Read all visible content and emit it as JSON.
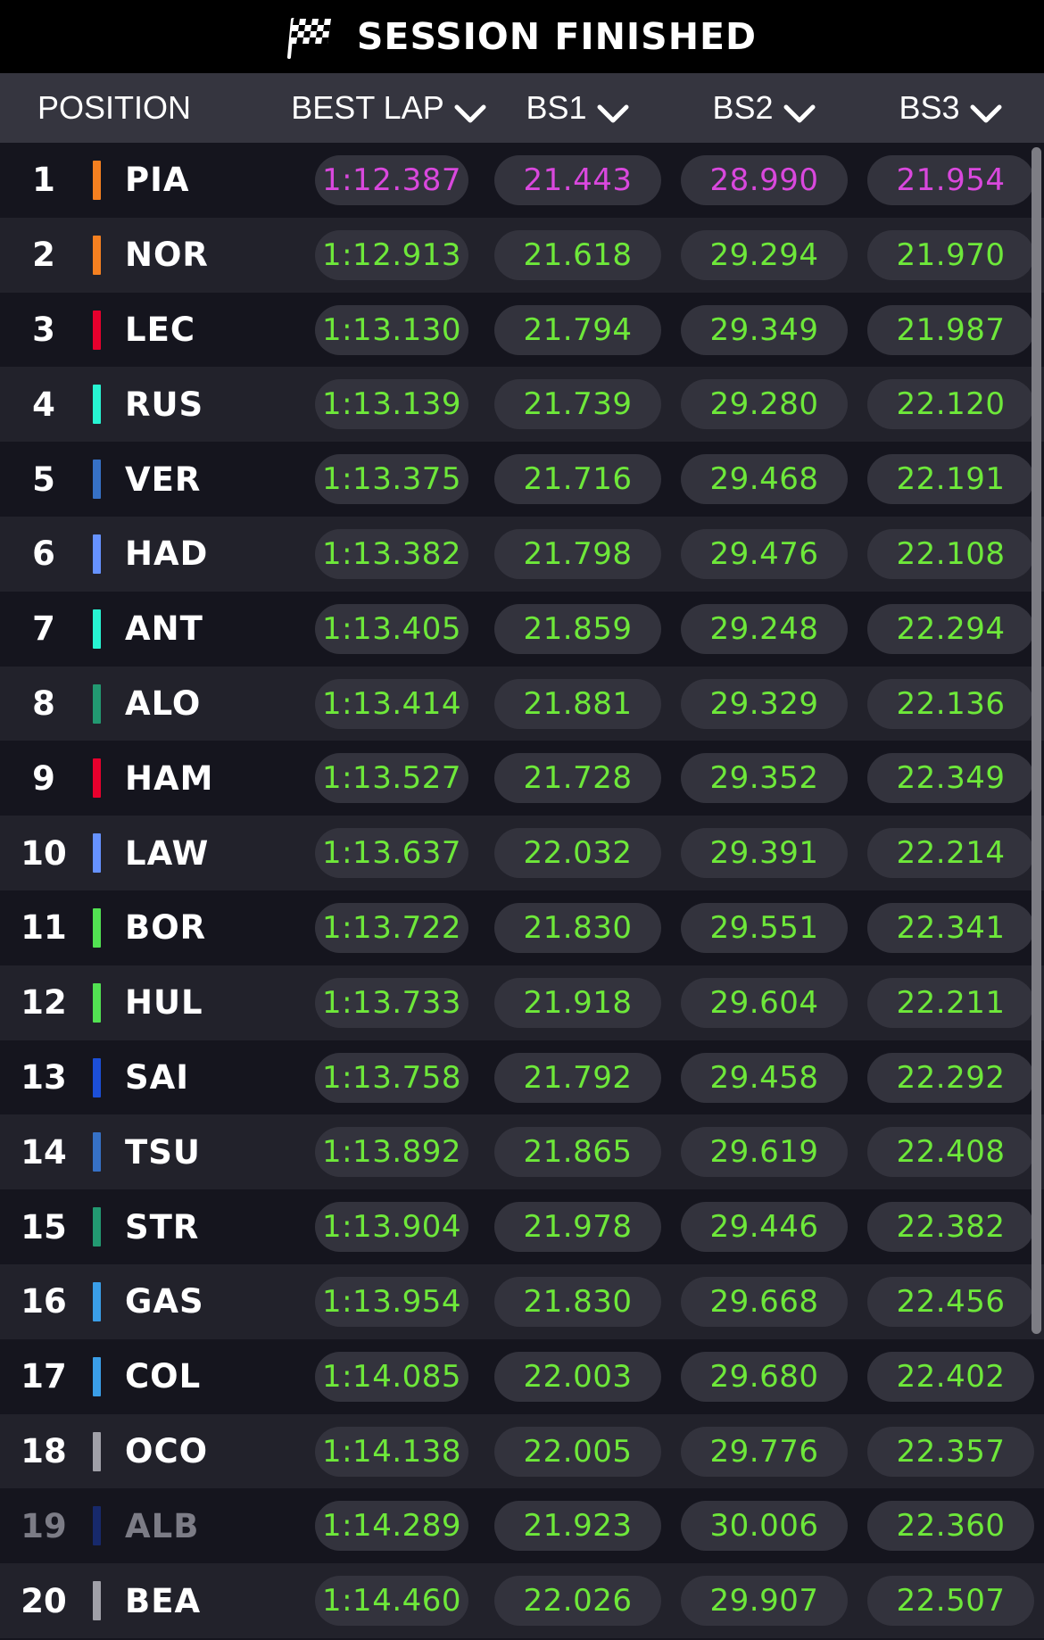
{
  "banner": {
    "title": "SESSION FINISHED",
    "icon": "checkered-flag-icon"
  },
  "columns": {
    "position": "POSITION",
    "best_lap": "BEST LAP",
    "bs1": "BS1",
    "bs2": "BS2",
    "bs3": "BS3",
    "sort_icon": "chevron-down-icon"
  },
  "colors": {
    "fastest": "#d948dd",
    "personal_best": "#6ee83a",
    "background": "#15151e",
    "row_alt": "#22222b",
    "header": "#35353f",
    "pill": "#33333d"
  },
  "rows": [
    {
      "pos": "1",
      "code": "PIA",
      "team_color": "#f58020",
      "best_lap": "1:12.387",
      "bs1": "21.443",
      "bs2": "28.990",
      "bs3": "21.954"
    },
    {
      "pos": "2",
      "code": "NOR",
      "team_color": "#f58020",
      "best_lap": "1:12.913",
      "bs1": "21.618",
      "bs2": "29.294",
      "bs3": "21.970"
    },
    {
      "pos": "3",
      "code": "LEC",
      "team_color": "#e8002d",
      "best_lap": "1:13.130",
      "bs1": "21.794",
      "bs2": "29.349",
      "bs3": "21.987"
    },
    {
      "pos": "4",
      "code": "RUS",
      "team_color": "#27f4d2",
      "best_lap": "1:13.139",
      "bs1": "21.739",
      "bs2": "29.280",
      "bs3": "22.120"
    },
    {
      "pos": "5",
      "code": "VER",
      "team_color": "#3671c6",
      "best_lap": "1:13.375",
      "bs1": "21.716",
      "bs2": "29.468",
      "bs3": "22.191"
    },
    {
      "pos": "6",
      "code": "HAD",
      "team_color": "#6692ff",
      "best_lap": "1:13.382",
      "bs1": "21.798",
      "bs2": "29.476",
      "bs3": "22.108"
    },
    {
      "pos": "7",
      "code": "ANT",
      "team_color": "#27f4d2",
      "best_lap": "1:13.405",
      "bs1": "21.859",
      "bs2": "29.248",
      "bs3": "22.294"
    },
    {
      "pos": "8",
      "code": "ALO",
      "team_color": "#229971",
      "best_lap": "1:13.414",
      "bs1": "21.881",
      "bs2": "29.329",
      "bs3": "22.136"
    },
    {
      "pos": "9",
      "code": "HAM",
      "team_color": "#e8002d",
      "best_lap": "1:13.527",
      "bs1": "21.728",
      "bs2": "29.352",
      "bs3": "22.349"
    },
    {
      "pos": "10",
      "code": "LAW",
      "team_color": "#6692ff",
      "best_lap": "1:13.637",
      "bs1": "22.032",
      "bs2": "29.391",
      "bs3": "22.214"
    },
    {
      "pos": "11",
      "code": "BOR",
      "team_color": "#52e252",
      "best_lap": "1:13.722",
      "bs1": "21.830",
      "bs2": "29.551",
      "bs3": "22.341"
    },
    {
      "pos": "12",
      "code": "HUL",
      "team_color": "#52e252",
      "best_lap": "1:13.733",
      "bs1": "21.918",
      "bs2": "29.604",
      "bs3": "22.211"
    },
    {
      "pos": "13",
      "code": "SAI",
      "team_color": "#1c4fd8",
      "best_lap": "1:13.758",
      "bs1": "21.792",
      "bs2": "29.458",
      "bs3": "22.292"
    },
    {
      "pos": "14",
      "code": "TSU",
      "team_color": "#3671c6",
      "best_lap": "1:13.892",
      "bs1": "21.865",
      "bs2": "29.619",
      "bs3": "22.408"
    },
    {
      "pos": "15",
      "code": "STR",
      "team_color": "#229971",
      "best_lap": "1:13.904",
      "bs1": "21.978",
      "bs2": "29.446",
      "bs3": "22.382"
    },
    {
      "pos": "16",
      "code": "GAS",
      "team_color": "#3a9ee8",
      "best_lap": "1:13.954",
      "bs1": "21.830",
      "bs2": "29.668",
      "bs3": "22.456"
    },
    {
      "pos": "17",
      "code": "COL",
      "team_color": "#3a9ee8",
      "best_lap": "1:14.085",
      "bs1": "22.003",
      "bs2": "29.680",
      "bs3": "22.402"
    },
    {
      "pos": "18",
      "code": "OCO",
      "team_color": "#a0a0a8",
      "best_lap": "1:14.138",
      "bs1": "22.005",
      "bs2": "29.776",
      "bs3": "22.357"
    },
    {
      "pos": "19",
      "code": "ALB",
      "team_color": "#17296b",
      "best_lap": "1:14.289",
      "bs1": "21.923",
      "bs2": "30.006",
      "bs3": "22.360",
      "dim": true
    },
    {
      "pos": "20",
      "code": "BEA",
      "team_color": "#a0a0a8",
      "best_lap": "1:14.460",
      "bs1": "22.026",
      "bs2": "29.907",
      "bs3": "22.507"
    }
  ]
}
